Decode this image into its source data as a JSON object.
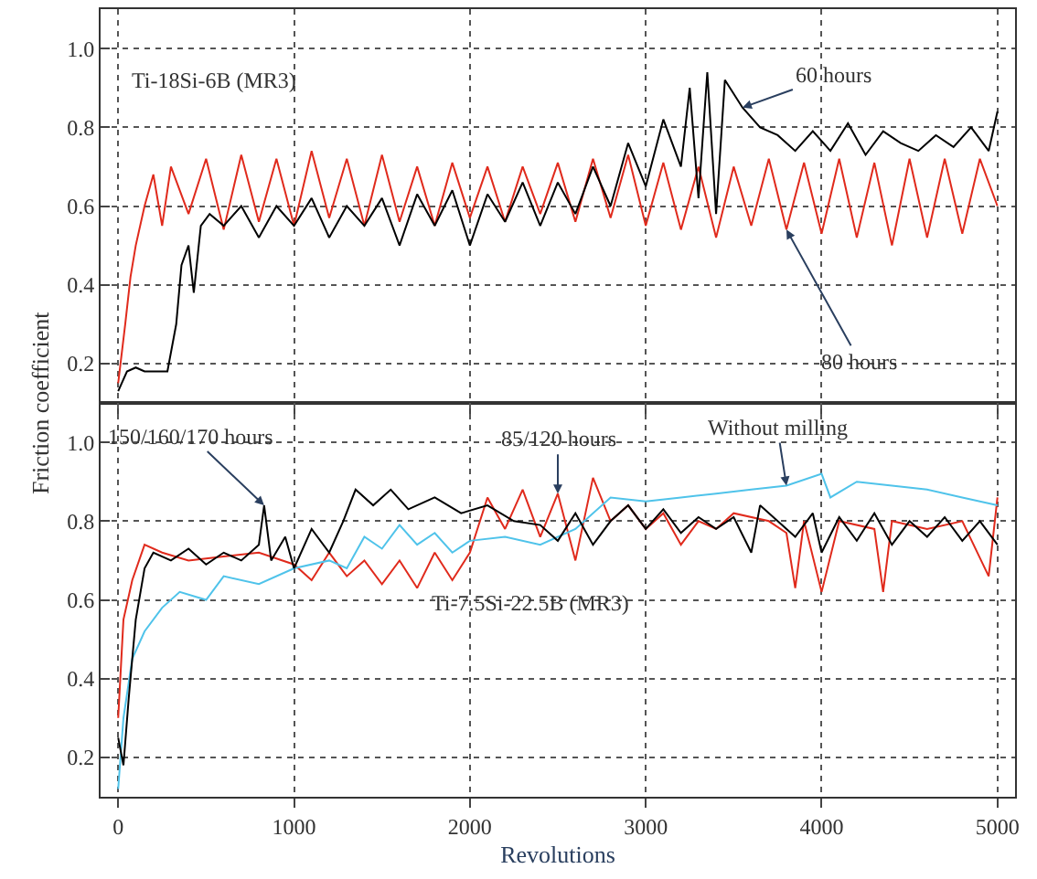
{
  "chart_data": [
    {
      "type": "line",
      "ylabel": "Friction coefficient",
      "xlim": [
        -100,
        5100
      ],
      "xticks": [
        0,
        1000,
        2000,
        3000,
        4000,
        5000
      ],
      "ylim": [
        0.1,
        1.1
      ],
      "yticks": [
        0.2,
        0.4,
        0.6,
        0.8,
        {
          "value": 1,
          "label": "1.0"
        }
      ],
      "grid": true,
      "tick_labels": "y",
      "line_style": "solid",
      "annotations": [
        "Ti-18Si-6B (MR3)",
        {
          "text": "60 hours",
          "x": 3550,
          "y": 0.85
        },
        {
          "text": "80 hours",
          "x": 3800,
          "y": 0.54
        }
      ],
      "series": [
        {
          "color": "#e02a1c",
          "x": [
            0,
            40,
            70,
            100,
            150,
            200,
            250,
            300,
            400,
            500,
            600,
            700,
            800,
            900,
            1000,
            1100,
            1200,
            1300,
            1400,
            1500,
            1600,
            1700,
            1800,
            1900,
            2000,
            2100,
            2200,
            2300,
            2400,
            2500,
            2600,
            2700,
            2800,
            2900,
            3000,
            3100,
            3200,
            3300,
            3400,
            3500,
            3600,
            3700,
            3800,
            3900,
            4000,
            4100,
            4200,
            4300,
            4400,
            4500,
            4600,
            4700,
            4800,
            4900,
            5000
          ],
          "values": [
            0.15,
            0.3,
            0.42,
            0.5,
            0.6,
            0.68,
            0.55,
            0.7,
            0.58,
            0.72,
            0.54,
            0.73,
            0.56,
            0.72,
            0.55,
            0.74,
            0.57,
            0.72,
            0.55,
            0.73,
            0.56,
            0.7,
            0.55,
            0.71,
            0.57,
            0.7,
            0.56,
            0.7,
            0.58,
            0.71,
            0.56,
            0.72,
            0.57,
            0.73,
            0.55,
            0.71,
            0.54,
            0.7,
            0.52,
            0.7,
            0.55,
            0.72,
            0.54,
            0.71,
            0.53,
            0.72,
            0.52,
            0.71,
            0.5,
            0.72,
            0.52,
            0.72,
            0.53,
            0.72,
            0.6
          ]
        },
        {
          "color": "#000000",
          "x": [
            0,
            50,
            100,
            150,
            200,
            280,
            330,
            360,
            400,
            430,
            470,
            520,
            600,
            700,
            800,
            900,
            1000,
            1100,
            1200,
            1300,
            1400,
            1500,
            1600,
            1700,
            1800,
            1900,
            2000,
            2100,
            2200,
            2300,
            2400,
            2500,
            2600,
            2700,
            2800,
            2900,
            3000,
            3100,
            3200,
            3250,
            3300,
            3350,
            3400,
            3450,
            3550,
            3650,
            3750,
            3850,
            3950,
            4050,
            4150,
            4250,
            4350,
            4450,
            4550,
            4650,
            4750,
            4850,
            4950,
            5000
          ],
          "values": [
            0.13,
            0.18,
            0.19,
            0.18,
            0.18,
            0.18,
            0.3,
            0.45,
            0.5,
            0.38,
            0.55,
            0.58,
            0.55,
            0.6,
            0.52,
            0.6,
            0.55,
            0.62,
            0.52,
            0.6,
            0.55,
            0.62,
            0.5,
            0.63,
            0.55,
            0.64,
            0.5,
            0.63,
            0.56,
            0.66,
            0.55,
            0.66,
            0.58,
            0.7,
            0.6,
            0.76,
            0.65,
            0.82,
            0.7,
            0.9,
            0.62,
            0.94,
            0.58,
            0.92,
            0.85,
            0.8,
            0.78,
            0.74,
            0.79,
            0.74,
            0.81,
            0.73,
            0.79,
            0.76,
            0.74,
            0.78,
            0.75,
            0.8,
            0.74,
            0.84
          ]
        }
      ]
    },
    {
      "type": "line",
      "xlabel": "Revolutions",
      "xlim": [
        -100,
        5100
      ],
      "xticks": [
        0,
        1000,
        2000,
        3000,
        4000,
        5000
      ],
      "ylim": [
        0.1,
        1.1
      ],
      "yticks": [
        0.2,
        0.4,
        0.6,
        0.8,
        {
          "value": 1,
          "label": "1.0"
        }
      ],
      "grid": true,
      "line_style": "solid",
      "annotations": [
        "Ti-7.5Si-22.5B (MR3)",
        {
          "text": "150/160/170 hours",
          "x": 830,
          "y": 0.84
        },
        {
          "text": "85/120 hours",
          "x": 2500,
          "y": 0.87
        },
        {
          "text": "Without milling",
          "x": 3800,
          "y": 0.89
        }
      ],
      "series": [
        {
          "color": "#e02a1c",
          "x": [
            0,
            30,
            80,
            150,
            250,
            400,
            600,
            800,
            1000,
            1100,
            1200,
            1300,
            1400,
            1500,
            1600,
            1700,
            1800,
            1900,
            2000,
            2100,
            2200,
            2300,
            2400,
            2500,
            2600,
            2700,
            2800,
            2900,
            3000,
            3100,
            3200,
            3300,
            3400,
            3500,
            3700,
            3800,
            3850,
            3900,
            4000,
            4100,
            4300,
            4350,
            4400,
            4600,
            4800,
            4950,
            5000
          ],
          "values": [
            0.3,
            0.55,
            0.65,
            0.74,
            0.72,
            0.7,
            0.71,
            0.72,
            0.69,
            0.65,
            0.72,
            0.66,
            0.7,
            0.64,
            0.7,
            0.63,
            0.72,
            0.65,
            0.72,
            0.86,
            0.78,
            0.88,
            0.76,
            0.87,
            0.7,
            0.91,
            0.8,
            0.84,
            0.78,
            0.82,
            0.74,
            0.8,
            0.78,
            0.82,
            0.8,
            0.77,
            0.63,
            0.8,
            0.62,
            0.8,
            0.78,
            0.62,
            0.8,
            0.78,
            0.8,
            0.66,
            0.86
          ]
        },
        {
          "color": "#4fc3ea",
          "x": [
            0,
            30,
            80,
            150,
            250,
            350,
            500,
            600,
            800,
            1000,
            1200,
            1300,
            1400,
            1500,
            1600,
            1700,
            1800,
            1900,
            2000,
            2200,
            2400,
            2600,
            2800,
            3000,
            3200,
            3400,
            3600,
            3800,
            4000,
            4050,
            4200,
            4400,
            4600,
            4800,
            5000
          ],
          "values": [
            0.12,
            0.3,
            0.45,
            0.52,
            0.58,
            0.62,
            0.6,
            0.66,
            0.64,
            0.68,
            0.7,
            0.68,
            0.76,
            0.73,
            0.79,
            0.74,
            0.77,
            0.72,
            0.75,
            0.76,
            0.74,
            0.78,
            0.86,
            0.85,
            0.86,
            0.87,
            0.88,
            0.89,
            0.92,
            0.86,
            0.9,
            0.89,
            0.88,
            0.86,
            0.84
          ]
        },
        {
          "color": "#000000",
          "x": [
            0,
            30,
            60,
            100,
            150,
            200,
            300,
            400,
            500,
            600,
            700,
            800,
            830,
            870,
            950,
            1000,
            1100,
            1200,
            1280,
            1350,
            1450,
            1550,
            1650,
            1800,
            1950,
            2100,
            2250,
            2400,
            2500,
            2600,
            2700,
            2800,
            2900,
            3000,
            3100,
            3200,
            3300,
            3400,
            3500,
            3600,
            3650,
            3750,
            3850,
            3950,
            4000,
            4100,
            4200,
            4300,
            4400,
            4500,
            4600,
            4700,
            4800,
            4900,
            5000
          ],
          "values": [
            0.25,
            0.18,
            0.35,
            0.55,
            0.68,
            0.72,
            0.7,
            0.73,
            0.69,
            0.72,
            0.7,
            0.74,
            0.84,
            0.7,
            0.76,
            0.68,
            0.78,
            0.72,
            0.8,
            0.88,
            0.84,
            0.88,
            0.83,
            0.86,
            0.82,
            0.84,
            0.8,
            0.79,
            0.75,
            0.82,
            0.74,
            0.8,
            0.84,
            0.78,
            0.83,
            0.77,
            0.81,
            0.78,
            0.81,
            0.72,
            0.84,
            0.8,
            0.76,
            0.82,
            0.72,
            0.81,
            0.75,
            0.82,
            0.74,
            0.8,
            0.76,
            0.81,
            0.75,
            0.8,
            0.74
          ]
        }
      ]
    }
  ]
}
